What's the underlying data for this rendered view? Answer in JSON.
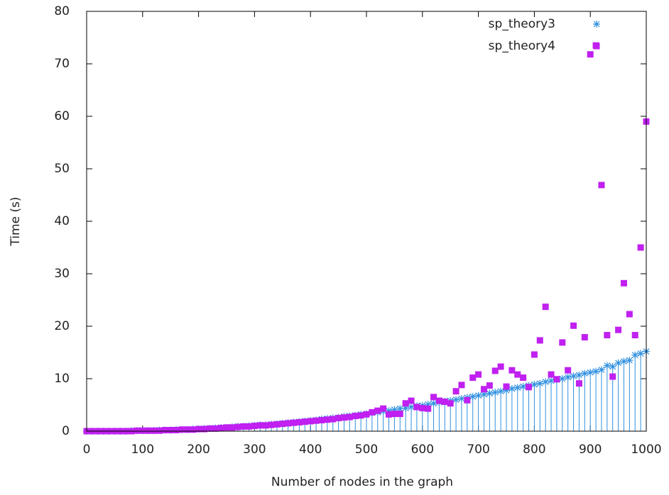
{
  "chart_data": {
    "type": "scatter",
    "x_label": "Number of nodes in the graph",
    "y_label": "Time (s)",
    "x": [
      0,
      10,
      20,
      30,
      40,
      50,
      60,
      70,
      80,
      90,
      100,
      110,
      120,
      130,
      140,
      150,
      160,
      170,
      180,
      190,
      200,
      210,
      220,
      230,
      240,
      250,
      260,
      270,
      280,
      290,
      300,
      310,
      320,
      330,
      340,
      350,
      360,
      370,
      380,
      390,
      400,
      410,
      420,
      430,
      440,
      450,
      460,
      470,
      480,
      490,
      500,
      510,
      520,
      530,
      540,
      550,
      560,
      570,
      580,
      590,
      600,
      610,
      620,
      630,
      640,
      650,
      660,
      670,
      680,
      690,
      700,
      710,
      720,
      730,
      740,
      750,
      760,
      770,
      780,
      790,
      800,
      810,
      820,
      830,
      840,
      850,
      860,
      870,
      880,
      890,
      900,
      910,
      920,
      930,
      940,
      950,
      960,
      970,
      980,
      990,
      1000
    ],
    "series": [
      {
        "name": "sp_theory3",
        "color": "#2f8fe0",
        "marker": "star",
        "impulses": true,
        "values": [
          0,
          0,
          0,
          0,
          0,
          0,
          0,
          0,
          0.1,
          0.1,
          0.1,
          0.1,
          0.1,
          0.2,
          0.2,
          0.2,
          0.3,
          0.3,
          0.3,
          0.4,
          0.4,
          0.5,
          0.5,
          0.6,
          0.7,
          0.7,
          0.8,
          0.9,
          0.9,
          1.0,
          1.1,
          1.2,
          1.2,
          1.3,
          1.4,
          1.5,
          1.6,
          1.7,
          1.8,
          1.9,
          2.0,
          2.1,
          2.3,
          2.4,
          2.5,
          2.6,
          2.8,
          2.9,
          3.0,
          3.2,
          3.3,
          3.5,
          3.6,
          3.8,
          3.9,
          4.1,
          4.3,
          4.4,
          4.6,
          4.8,
          4.9,
          5.1,
          5.3,
          5.5,
          5.7,
          5.8,
          6.0,
          6.2,
          6.4,
          6.6,
          6.8,
          7.0,
          7.2,
          7.4,
          7.6,
          7.8,
          8.1,
          8.3,
          8.5,
          8.7,
          8.9,
          9.1,
          9.4,
          9.6,
          9.8,
          10.0,
          10.3,
          10.5,
          10.7,
          11.0,
          11.2,
          11.4,
          11.7,
          12.5,
          12.3,
          13.0,
          13.3,
          13.5,
          14.5,
          14.8,
          15.2
        ]
      },
      {
        "name": "sp_theory4",
        "color": "#c020f0",
        "marker": "square",
        "impulses": false,
        "values": [
          0,
          0,
          0,
          0,
          0,
          0,
          0,
          0,
          0,
          0.1,
          0.1,
          0.1,
          0.1,
          0.1,
          0.2,
          0.2,
          0.2,
          0.3,
          0.3,
          0.3,
          0.4,
          0.4,
          0.5,
          0.5,
          0.6,
          0.7,
          0.7,
          0.8,
          0.9,
          0.9,
          1.0,
          1.1,
          1.1,
          1.2,
          1.3,
          1.4,
          1.5,
          1.6,
          1.7,
          1.8,
          1.9,
          2.0,
          2.1,
          2.2,
          2.3,
          2.5,
          2.6,
          2.7,
          2.9,
          3.0,
          3.2,
          3.6,
          3.9,
          4.3,
          3.2,
          3.3,
          3.3,
          5.3,
          5.8,
          4.6,
          4.4,
          4.3,
          6.5,
          5.8,
          5.6,
          5.3,
          7.6,
          8.8,
          5.9,
          10.2,
          10.8,
          8.0,
          8.7,
          11.5,
          12.3,
          8.5,
          11.6,
          10.8,
          10.2,
          8.4,
          14.6,
          17.3,
          23.7,
          10.8,
          9.9,
          16.9,
          11.6,
          20.1,
          9.1,
          17.9,
          71.8,
          73.5,
          46.9,
          18.3,
          10.4,
          19.3,
          28.2,
          22.3,
          18.3,
          35.0,
          59.0
        ]
      }
    ],
    "xlim": [
      0,
      1000
    ],
    "ylim": [
      0,
      80
    ],
    "xticks": [
      0,
      100,
      200,
      300,
      400,
      500,
      600,
      700,
      800,
      900,
      1000
    ],
    "yticks": [
      0,
      10,
      20,
      30,
      40,
      50,
      60,
      70,
      80
    ],
    "legend": "top-right"
  }
}
